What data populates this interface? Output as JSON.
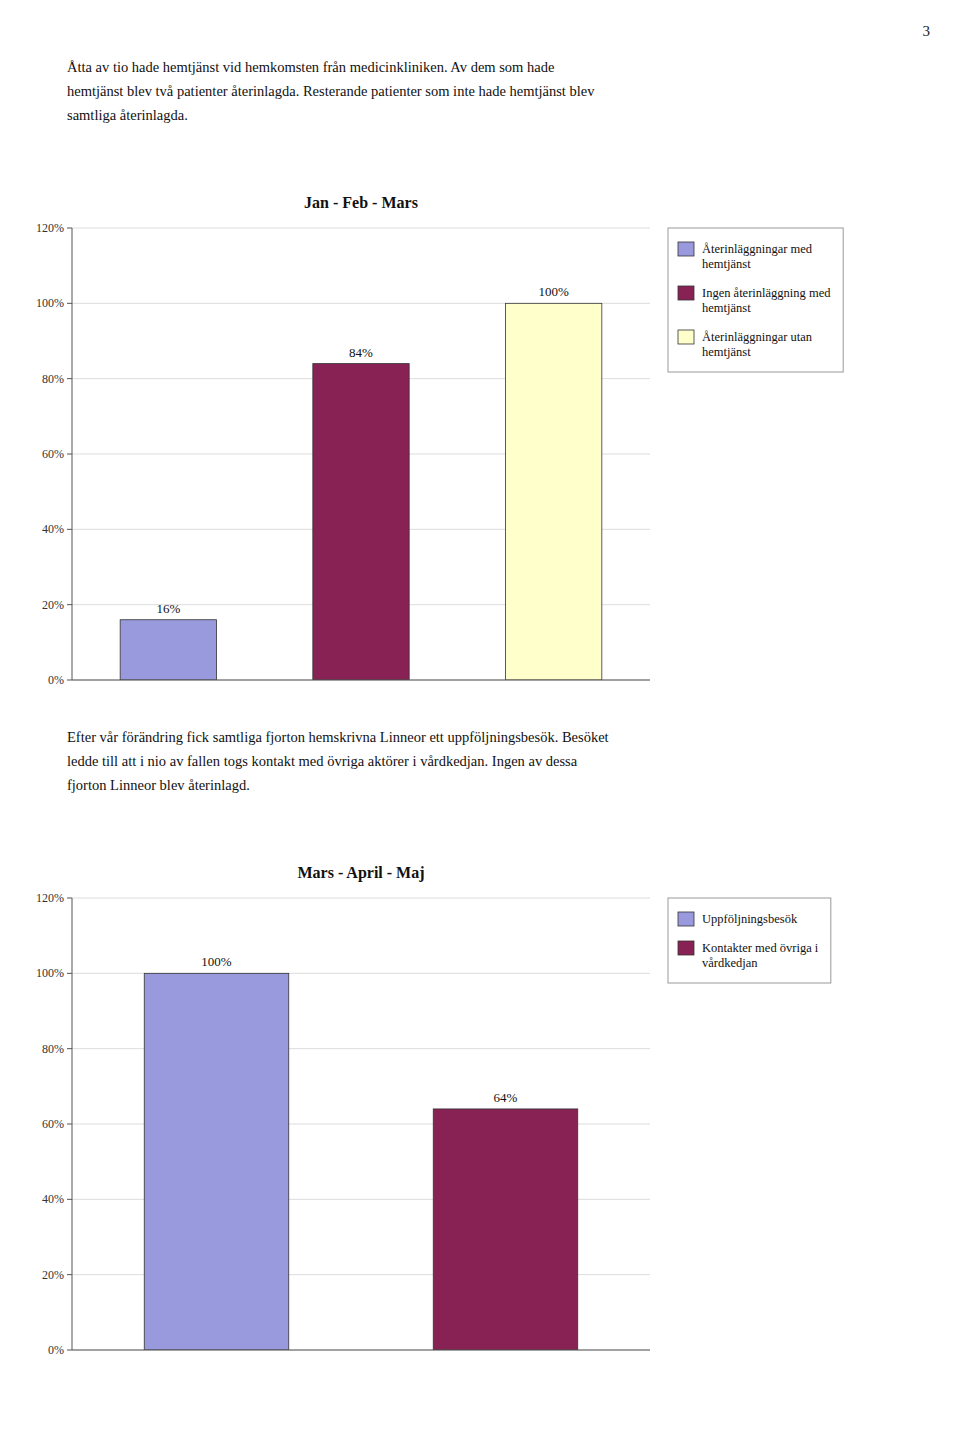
{
  "page_number": "3",
  "paragraphs": [
    "Åtta av tio hade hemtjänst vid hemkomsten från medicinkliniken. Av dem som hade\nhemtjänst blev två patienter återinlagda. Resterande patienter som inte hade hemtjänst blev\nsamtliga återinlagda.",
    "Efter vår förändring fick samtliga fjorton hemskrivna Linneor ett uppföljningsbesök. Besöket\nledde till att i nio av fallen togs kontakt med övriga aktörer i vårdkedjan. Ingen av dessa\nfjorton Linneor blev återinlagd."
  ],
  "chart_data": [
    {
      "type": "bar",
      "title": "Jan - Feb - Mars",
      "categories": [
        "Återinläggningar med\nhemtjänst",
        "Ingen återinläggning med\nhemtjänst",
        "Återinläggningar utan\nhemtjänst"
      ],
      "values": [
        16,
        84,
        100
      ],
      "value_labels": [
        "16%",
        "84%",
        "100%"
      ],
      "colors": [
        "#9999dd",
        "#882255",
        "#ffffcc"
      ],
      "ylim": [
        0,
        120
      ],
      "yticks": [
        {
          "value": 0,
          "label": "0%"
        },
        {
          "value": 20,
          "label": "20%"
        },
        {
          "value": 40,
          "label": "40%"
        },
        {
          "value": 60,
          "label": "60%"
        },
        {
          "value": 80,
          "label": "80%"
        },
        {
          "value": 100,
          "label": "100%"
        },
        {
          "value": 120,
          "label": "120%"
        }
      ],
      "grid": true,
      "legend": "right",
      "data_labels": true,
      "tick_labels": "y"
    },
    {
      "type": "bar",
      "title": "Mars - April - Maj",
      "categories": [
        "Uppföljningsbesök",
        "Kontakter med övriga i\nvårdkedjan"
      ],
      "values": [
        100,
        64
      ],
      "value_labels": [
        "100%",
        "64%"
      ],
      "colors": [
        "#9999dd",
        "#882255"
      ],
      "ylim": [
        0,
        120
      ],
      "yticks": [
        {
          "value": 0,
          "label": "0%"
        },
        {
          "value": 20,
          "label": "20%"
        },
        {
          "value": 40,
          "label": "40%"
        },
        {
          "value": 60,
          "label": "60%"
        },
        {
          "value": 80,
          "label": "80%"
        },
        {
          "value": 100,
          "label": "100%"
        },
        {
          "value": 120,
          "label": "120%"
        }
      ],
      "grid": true,
      "legend": "right",
      "data_labels": true,
      "tick_labels": "y"
    }
  ]
}
